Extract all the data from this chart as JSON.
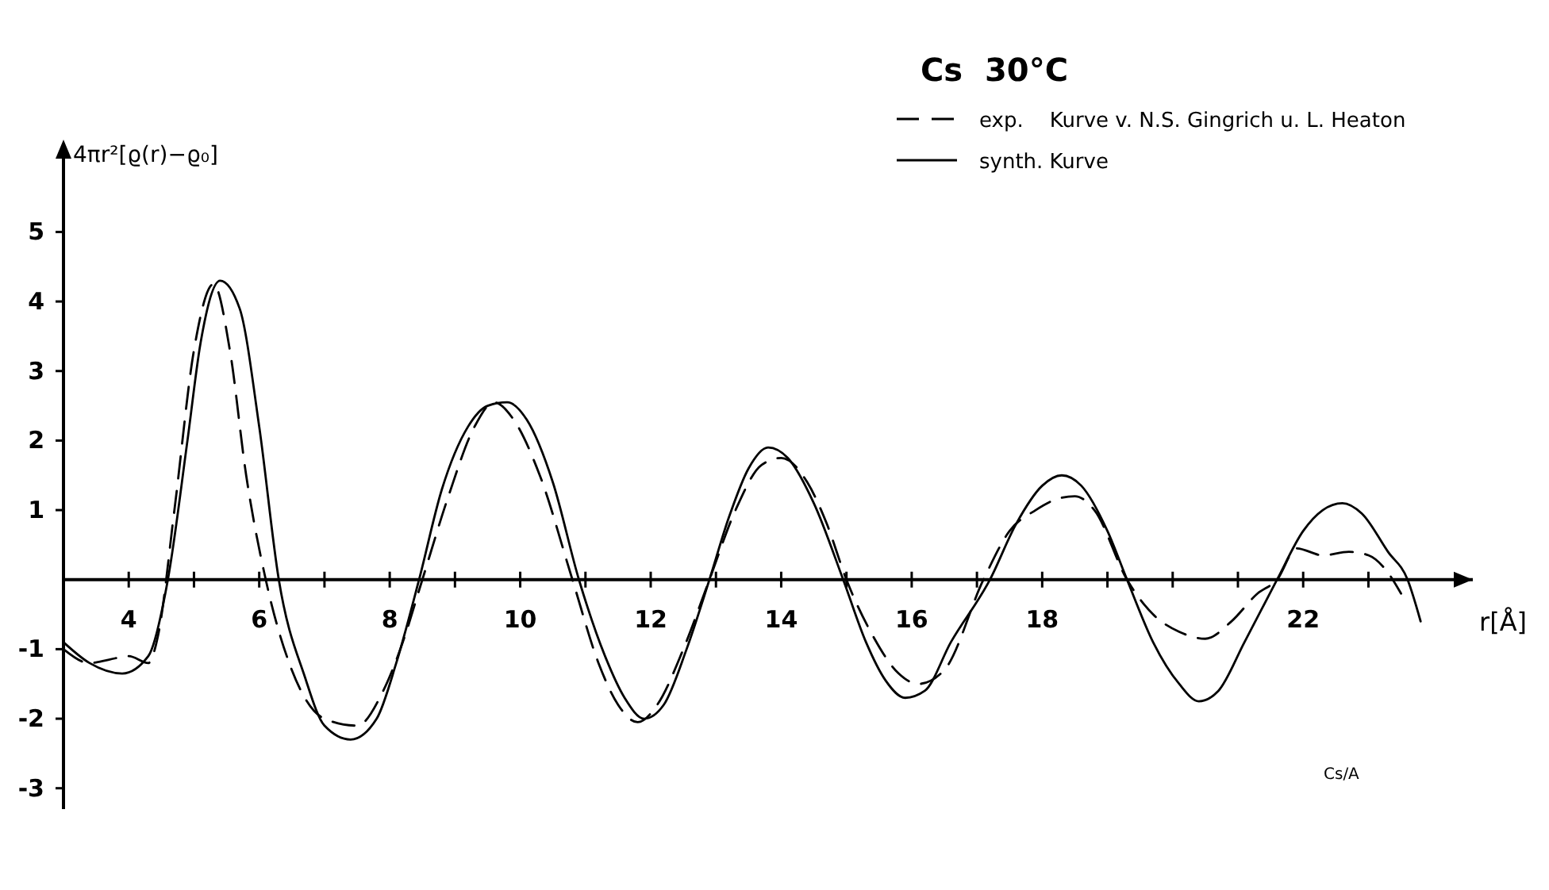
{
  "chart_data": {
    "type": "line",
    "title": "Cs  30°C",
    "xlabel": "r[Å]",
    "ylabel": "4πr²[ϱ(r)−ϱ₀]",
    "annotations": [
      "Cs/A"
    ],
    "legend": "top right",
    "grid": false,
    "marker": "none",
    "xlim": [
      3,
      24.6
    ],
    "ylim": [
      -3.3,
      6.1
    ],
    "xticks": [
      {
        "value": 4,
        "label": "4"
      },
      {
        "value": 5,
        "label": null
      },
      {
        "value": 6,
        "label": "6"
      },
      {
        "value": 7,
        "label": null
      },
      {
        "value": 8,
        "label": "8"
      },
      {
        "value": 9,
        "label": null
      },
      {
        "value": 10,
        "label": "10"
      },
      {
        "value": 11,
        "label": null
      },
      {
        "value": 12,
        "label": "12"
      },
      {
        "value": 13,
        "label": null
      },
      {
        "value": 14,
        "label": "14"
      },
      {
        "value": 15,
        "label": null
      },
      {
        "value": 16,
        "label": "16"
      },
      {
        "value": 17,
        "label": null
      },
      {
        "value": 18,
        "label": "18"
      },
      {
        "value": 19,
        "label": null
      },
      {
        "value": 20,
        "label": null
      },
      {
        "value": 21,
        "label": null
      },
      {
        "value": 22,
        "label": "22"
      },
      {
        "value": 23,
        "label": null
      }
    ],
    "yticks": [
      -3,
      -2,
      -1,
      1,
      2,
      3,
      4,
      5
    ],
    "series": [
      {
        "name": "exp.    Kurve v. N.S. Gingrich u. L. Heaton",
        "color": "#000000",
        "line_style": "dashed",
        "x": [
          3,
          3.4,
          3.7,
          4.0,
          4.3,
          4.45,
          4.7,
          5.0,
          5.3,
          5.55,
          5.8,
          6.1,
          6.5,
          7.0,
          7.5,
          7.9,
          8.2,
          8.5,
          8.9,
          9.3,
          9.6,
          9.9,
          10.3,
          10.8,
          11.2,
          11.5,
          11.8,
          12.1,
          12.5,
          12.9,
          13.3,
          13.7,
          14.0,
          14.4,
          14.7,
          15.0,
          15.4,
          15.8,
          16.1,
          16.5,
          17.1,
          17.5,
          17.9,
          18.2,
          18.5,
          18.8,
          19.3,
          19.7,
          20.1,
          20.5,
          20.9,
          21.3,
          21.6,
          21.9,
          22.3,
          22.7,
          23.0,
          23.3,
          23.5
        ],
        "values": [
          -1.0,
          -1.2,
          -1.15,
          -1.1,
          -1.2,
          -0.8,
          1.0,
          3.3,
          4.25,
          3.3,
          1.5,
          0,
          -1.3,
          -2.0,
          -2.1,
          -1.6,
          -0.9,
          0,
          1.2,
          2.2,
          2.55,
          2.3,
          1.5,
          0,
          -1.2,
          -1.8,
          -2.05,
          -1.8,
          -1.0,
          0,
          1.0,
          1.65,
          1.75,
          1.4,
          0.8,
          0,
          -0.8,
          -1.35,
          -1.5,
          -1.3,
          0,
          0.7,
          1.0,
          1.15,
          1.2,
          1.0,
          0,
          -0.5,
          -0.75,
          -0.85,
          -0.6,
          -0.2,
          0,
          0.45,
          0.35,
          0.4,
          0.35,
          0.1,
          -0.2
        ]
      },
      {
        "name": "synth. Kurve",
        "color": "#000000",
        "line_style": "solid",
        "x": [
          3,
          3.4,
          3.9,
          4.3,
          4.6,
          4.9,
          5.1,
          5.4,
          5.7,
          6.0,
          6.3,
          6.7,
          7.0,
          7.4,
          7.8,
          8.1,
          8.45,
          8.8,
          9.2,
          9.5,
          9.8,
          10.1,
          10.5,
          10.9,
          11.3,
          11.6,
          11.9,
          12.2,
          12.55,
          12.9,
          13.2,
          13.5,
          13.8,
          14.1,
          14.5,
          14.95,
          15.3,
          15.6,
          15.9,
          16.2,
          16.6,
          17.2,
          17.6,
          18.0,
          18.3,
          18.6,
          19.0,
          19.3,
          19.7,
          20.1,
          20.4,
          20.7,
          21.1,
          21.6,
          22.0,
          22.3,
          22.6,
          22.9,
          23.3,
          23.6,
          23.8
        ],
        "values": [
          -0.9,
          -1.2,
          -1.35,
          -1.1,
          0,
          2.0,
          3.4,
          4.3,
          3.9,
          2.2,
          0,
          -1.4,
          -2.1,
          -2.3,
          -2.0,
          -1.2,
          0,
          1.3,
          2.2,
          2.5,
          2.55,
          2.3,
          1.4,
          0,
          -1.1,
          -1.7,
          -2.0,
          -1.8,
          -1.0,
          0,
          0.9,
          1.6,
          1.9,
          1.75,
          1.1,
          0,
          -0.9,
          -1.45,
          -1.7,
          -1.6,
          -0.9,
          0,
          0.8,
          1.35,
          1.5,
          1.35,
          0.7,
          0,
          -0.9,
          -1.5,
          -1.75,
          -1.6,
          -0.9,
          0,
          0.7,
          1.0,
          1.1,
          0.95,
          0.4,
          0,
          -0.6
        ]
      }
    ]
  }
}
